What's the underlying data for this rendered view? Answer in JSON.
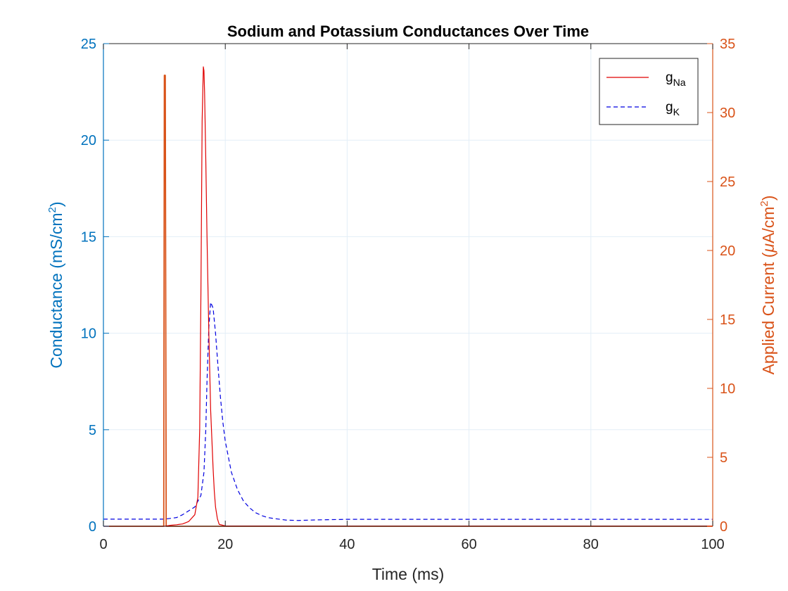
{
  "chart_data": {
    "type": "line",
    "title": "Sodium and Potassium Conductances Over Time",
    "xlabel": "Time (ms)",
    "ylabel_left": {
      "text": "Conductance (mS/cm",
      "sup": "2",
      "close": ")"
    },
    "ylabel_right": {
      "text": "Applied Current (",
      "mu": "μ",
      "unit": "A/cm",
      "sup": "2",
      "close": ")"
    },
    "xlim": [
      0,
      100
    ],
    "ylim_left": [
      0,
      25
    ],
    "ylim_right": [
      0,
      35
    ],
    "xticks": [
      0,
      20,
      40,
      60,
      80,
      100
    ],
    "yticks_left": [
      0,
      5,
      10,
      15,
      20,
      25
    ],
    "yticks_right": [
      0,
      5,
      10,
      15,
      20,
      25,
      30,
      35
    ],
    "grid": true,
    "legend_position": "top-right",
    "colors": {
      "left_axis": "#0072BD",
      "right_axis": "#D95319",
      "gNa": "#E00000",
      "gK": "#0000E0",
      "applied": "#D95319",
      "grid": "#E3EEF7"
    },
    "series": [
      {
        "name": "g",
        "subscript": "Na",
        "axis": "left",
        "style": "solid",
        "x": [
          0,
          9.9,
          10.0,
          11,
          12,
          13,
          14,
          15,
          15.5,
          15.8,
          16.0,
          16.2,
          16.4,
          16.5,
          16.6,
          16.8,
          17.0,
          17.3,
          17.6,
          18.0,
          18.2,
          18.4,
          18.7,
          19.0,
          20,
          30,
          40,
          60,
          80,
          100
        ],
        "y": [
          0,
          0,
          0.0,
          0.05,
          0.08,
          0.12,
          0.25,
          0.6,
          1.5,
          5,
          12,
          21,
          23.8,
          23.6,
          22.5,
          19,
          15,
          10,
          6,
          3,
          1.8,
          1.0,
          0.4,
          0.1,
          0.02,
          0.01,
          0.01,
          0.01,
          0.01,
          0.01
        ]
      },
      {
        "name": "g",
        "subscript": "K",
        "axis": "left",
        "style": "dashed",
        "x": [
          0,
          10,
          12,
          13,
          14,
          15,
          16,
          16.5,
          16.8,
          17.0,
          17.3,
          17.6,
          18.0,
          18.4,
          18.8,
          19.2,
          19.6,
          20,
          21,
          22,
          23,
          24,
          25,
          26,
          27,
          28,
          30,
          32,
          35,
          40,
          50,
          60,
          80,
          100
        ],
        "y": [
          0.37,
          0.37,
          0.45,
          0.6,
          0.8,
          1.0,
          1.6,
          2.8,
          5,
          7.5,
          10.3,
          11.6,
          11.3,
          10,
          8.3,
          6.7,
          5.4,
          4.4,
          2.8,
          1.9,
          1.3,
          0.95,
          0.7,
          0.55,
          0.45,
          0.4,
          0.32,
          0.3,
          0.33,
          0.36,
          0.36,
          0.36,
          0.36,
          0.36
        ]
      },
      {
        "name": "Applied Current",
        "axis": "right",
        "style": "solid",
        "x": [
          0,
          9.9,
          10.0,
          10.15,
          10.3,
          100
        ],
        "y": [
          0,
          0,
          32.7,
          32.7,
          0,
          0
        ]
      }
    ]
  }
}
